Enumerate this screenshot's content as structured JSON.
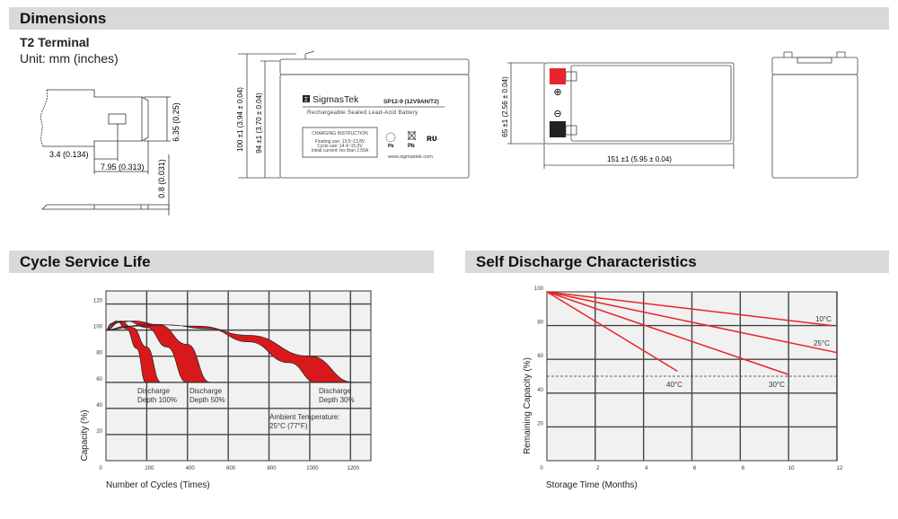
{
  "sections": {
    "dimensions": "Dimensions",
    "cycle_life": "Cycle Service Life",
    "self_discharge": "Self Discharge Characteristics"
  },
  "terminal": {
    "title": "T2 Terminal",
    "unit": "Unit: mm (inches)",
    "dim_height": "6.35 (0.25)",
    "dim_offset": "3.4 (0.134)",
    "dim_length": "7.95 (0.313)",
    "dim_thickness": "0.8 (0.031)"
  },
  "battery_front": {
    "dim_total_height": "100 ±1 (3.94 ± 0.04)",
    "dim_case_height": "94 ±1 (3.70 ± 0.04)",
    "brand": "SigmasTek",
    "model": "SP12-9 (12V9AH/T2)",
    "subtitle": "Rechargeable Sealed Lead-Acid Battery",
    "charging_title": "CHARGING INSTRUCTION",
    "charging_lines": [
      "Floating use: 13.5~13.8V",
      "Cycle use: 14.4~15.0V",
      "Initial current: les than 2.55A"
    ],
    "pb1": "Pb",
    "pb2": "Pb",
    "url": "www.sigmastek.com"
  },
  "battery_top": {
    "dim_width": "65 ±1 (2.56 ± 0.04)",
    "dim_length": "151 ±1 (5.95 ± 0.04)",
    "positive_color": "#e8252a",
    "negative_color": "#222222"
  },
  "chart_data": [
    {
      "type": "area",
      "xlabel": "Number of Cycles (Times)",
      "ylabel": "Capacity (%)",
      "xlim": [
        0,
        1300
      ],
      "ylim": [
        0,
        130
      ],
      "xticks": [
        0,
        200,
        400,
        600,
        800,
        1000,
        1200
      ],
      "yticks": [
        0,
        20,
        40,
        60,
        80,
        100,
        120
      ],
      "grid": true,
      "fill_color": "#d7191c",
      "series": [
        {
          "name": "Discharge Depth 100%",
          "label_lines": [
            "Discharge",
            "Depth 100%"
          ],
          "lower": [
            [
              0,
              100
            ],
            [
              25,
              105
            ],
            [
              50,
              107
            ],
            [
              100,
              101
            ],
            [
              150,
              86
            ],
            [
              195,
              60
            ]
          ],
          "upper": [
            [
              0,
              100
            ],
            [
              35,
              105
            ],
            [
              70,
              107
            ],
            [
              130,
              102
            ],
            [
              200,
              87
            ],
            [
              270,
              60
            ]
          ]
        },
        {
          "name": "Discharge Depth 50%",
          "label_lines": [
            "Discharge",
            "Depth 50%"
          ],
          "lower": [
            [
              0,
              100
            ],
            [
              50,
              106
            ],
            [
              100,
              107
            ],
            [
              200,
              102
            ],
            [
              300,
              87
            ],
            [
              395,
              60
            ]
          ],
          "upper": [
            [
              0,
              100
            ],
            [
              70,
              106
            ],
            [
              140,
              107
            ],
            [
              260,
              104
            ],
            [
              400,
              89
            ],
            [
              510,
              60
            ]
          ]
        },
        {
          "name": "Discharge Depth 30%",
          "label_lines": [
            "Discharge",
            "Depth 30%"
          ],
          "lower": [
            [
              0,
              100
            ],
            [
              150,
              103
            ],
            [
              300,
              104
            ],
            [
              500,
              101
            ],
            [
              700,
              91
            ],
            [
              900,
              75
            ],
            [
              1030,
              60
            ]
          ],
          "upper": [
            [
              0,
              100
            ],
            [
              100,
              103
            ],
            [
              200,
              104.5
            ],
            [
              450,
              103
            ],
            [
              700,
              96
            ],
            [
              1000,
              80
            ],
            [
              1215,
              60
            ]
          ]
        }
      ],
      "annotation": [
        "Ambient Temperature:",
        "25°C (77°F)"
      ]
    },
    {
      "type": "line",
      "xlabel": "Storage Time (Months)",
      "ylabel": "Remaining Capacity (%)",
      "xlim": [
        0,
        12
      ],
      "ylim": [
        0,
        100
      ],
      "xticks": [
        0,
        2,
        4,
        6,
        8,
        10,
        12
      ],
      "yticks": [
        0,
        20,
        40,
        60,
        80,
        100
      ],
      "grid": true,
      "line_color": "#e8252a",
      "reference_line": 50,
      "series": [
        {
          "name": "10°C",
          "points": [
            [
              0,
              100
            ],
            [
              11.8,
              80
            ]
          ]
        },
        {
          "name": "25°C",
          "points": [
            [
              0,
              100
            ],
            [
              12,
              64
            ]
          ]
        },
        {
          "name": "30°C",
          "points": [
            [
              0,
              100
            ],
            [
              10,
              51
            ]
          ]
        },
        {
          "name": "40°C",
          "points": [
            [
              0,
              100
            ],
            [
              5.4,
              53
            ]
          ]
        }
      ]
    }
  ]
}
